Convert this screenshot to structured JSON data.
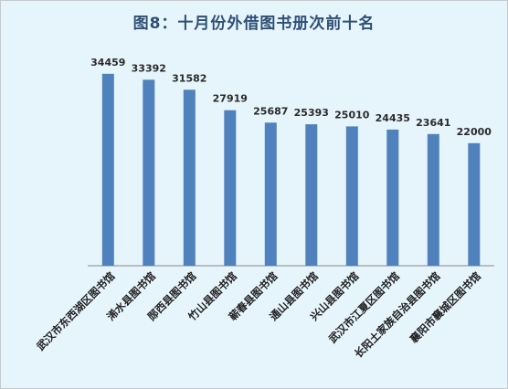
{
  "chart_data": {
    "type": "bar",
    "title": "图8：十月份外借图书册次前十名",
    "xlabel": "",
    "ylabel": "",
    "ylim": [
      0,
      40000
    ],
    "grid": false,
    "legend": "none",
    "bar_color": "#4f81bd",
    "categories": [
      "武汉市东西湖区图书馆",
      "浠水县图书馆",
      "郧西县图书馆",
      "竹山县图书馆",
      "蕲春县图书馆",
      "通山县图书馆",
      "兴山县图书馆",
      "武汉市江夏区图书馆",
      "长阳土家族自治县图书馆",
      "襄阳市襄城区图书馆"
    ],
    "values": [
      34459,
      33392,
      31582,
      27919,
      25687,
      25393,
      25010,
      24435,
      23641,
      22000
    ]
  }
}
